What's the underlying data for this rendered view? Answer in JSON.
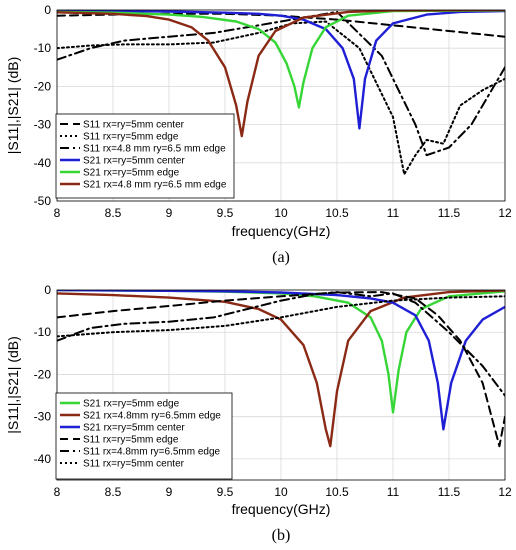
{
  "chart_data": [
    {
      "type": "line",
      "caption": "(a)",
      "xlabel": "frequency(GHz)",
      "ylabel": "|S11|,|S21| (dB)",
      "xlim": [
        8,
        12
      ],
      "ylim": [
        -50,
        0
      ],
      "xticks": [
        "8",
        "8.5",
        "9",
        "9.5",
        "10",
        "10.5",
        "11",
        "11.5",
        "12"
      ],
      "yticks": [
        "0",
        "-10",
        "-20",
        "-30",
        "-40",
        "-50"
      ],
      "grid": true,
      "legend_position": "bottom-left",
      "series": [
        {
          "name": "S11 rx=ry=5mm center",
          "color": "#000000",
          "dash": "dashed",
          "x": [
            8.0,
            8.5,
            9.0,
            9.5,
            10.0,
            10.5,
            11.0,
            11.5,
            12.0
          ],
          "y": [
            -1.5,
            -1.2,
            -1.0,
            -1.0,
            -1.5,
            -2.5,
            -4.0,
            -5.5,
            -7.0
          ]
        },
        {
          "name": "S11 rx=ry=5mm edge",
          "color": "#000000",
          "dash": "dotted",
          "x": [
            8.0,
            8.3,
            8.6,
            9.0,
            9.4,
            9.8,
            10.1,
            10.4,
            10.7,
            11.0,
            11.1,
            11.2,
            11.3,
            11.45,
            11.6,
            11.8,
            12.0
          ],
          "y": [
            -10,
            -9.3,
            -9.0,
            -9.0,
            -8.5,
            -6.0,
            -3.5,
            -3.0,
            -10,
            -28,
            -43,
            -38,
            -34,
            -35,
            -25,
            -21,
            -18
          ]
        },
        {
          "name": "S11 rx=4.8 mm ry=6.5 mm edge",
          "color": "#000000",
          "dash": "dashdot",
          "x": [
            8.0,
            8.3,
            8.6,
            9.0,
            9.4,
            9.8,
            10.2,
            10.5,
            10.9,
            11.2,
            11.3,
            11.5,
            11.7,
            11.9,
            12.0
          ],
          "y": [
            -13,
            -10,
            -8,
            -7,
            -6,
            -4,
            -2,
            -0.5,
            -12,
            -30,
            -38,
            -36,
            -30,
            -20,
            -15
          ]
        },
        {
          "name": "S21 rx=ry=5mm center",
          "color": "#1f1fd6",
          "dash": "solid",
          "x": [
            8.0,
            8.5,
            9.0,
            9.5,
            9.8,
            10.0,
            10.2,
            10.4,
            10.55,
            10.65,
            10.7,
            10.75,
            10.85,
            11.0,
            11.3,
            11.6,
            12.0
          ],
          "y": [
            -0.2,
            -0.3,
            -0.4,
            -0.7,
            -1.0,
            -1.5,
            -2.5,
            -5.0,
            -10.0,
            -18.0,
            -31.0,
            -18.0,
            -8.0,
            -3.5,
            -1.2,
            -0.5,
            -0.3
          ]
        },
        {
          "name": "S21 rx=ry=5mm edge",
          "color": "#37d637",
          "dash": "solid",
          "x": [
            8.0,
            8.5,
            9.0,
            9.3,
            9.6,
            9.8,
            9.95,
            10.05,
            10.12,
            10.16,
            10.2,
            10.28,
            10.4,
            10.6,
            11.0,
            12.0
          ],
          "y": [
            -0.5,
            -0.7,
            -1.2,
            -1.8,
            -3.0,
            -5.0,
            -8.5,
            -14.0,
            -20.0,
            -25.5,
            -19.0,
            -10.0,
            -4.5,
            -1.5,
            -0.3,
            -0.1
          ]
        },
        {
          "name": "S21 rx=4.8 mm ry=6.5 mm edge",
          "color": "#8b2a14",
          "dash": "solid",
          "x": [
            8.0,
            8.5,
            8.8,
            9.0,
            9.2,
            9.35,
            9.5,
            9.6,
            9.65,
            9.7,
            9.8,
            9.95,
            10.2,
            10.6,
            11.0,
            12.0
          ],
          "y": [
            -0.6,
            -1.0,
            -1.6,
            -2.5,
            -4.5,
            -8.0,
            -15.0,
            -25.0,
            -33.0,
            -24.0,
            -12.0,
            -5.5,
            -2.0,
            -0.5,
            -0.1,
            0.0
          ]
        }
      ]
    },
    {
      "type": "line",
      "caption": "(b)",
      "xlabel": "frequency(GHz)",
      "ylabel": "|S11|,|S21| (dB)",
      "xlim": [
        8,
        12
      ],
      "ylim": [
        -45,
        0
      ],
      "xticks": [
        "8",
        "8.5",
        "9",
        "9.5",
        "10",
        "10.5",
        "11",
        "11.5",
        "12"
      ],
      "yticks": [
        "0",
        "-10",
        "-20",
        "-30",
        "-40"
      ],
      "grid": true,
      "legend_position": "bottom-left",
      "series": [
        {
          "name": "S21 rx=ry=5mm edge",
          "color": "#37d637",
          "dash": "solid",
          "x": [
            8.0,
            8.5,
            9.0,
            9.5,
            10.0,
            10.3,
            10.6,
            10.8,
            10.9,
            10.96,
            11.0,
            11.05,
            11.12,
            11.25,
            11.5,
            12.0
          ],
          "y": [
            0.0,
            -0.1,
            -0.2,
            -0.4,
            -0.8,
            -1.5,
            -3.0,
            -6.5,
            -12.0,
            -20.0,
            -29.0,
            -19.0,
            -10.0,
            -4.5,
            -1.5,
            -0.3
          ]
        },
        {
          "name": "S21 rx=4.8mm ry=6.5mm edge",
          "color": "#8b2a14",
          "dash": "solid",
          "x": [
            8.0,
            8.5,
            9.0,
            9.5,
            9.8,
            10.0,
            10.2,
            10.32,
            10.4,
            10.44,
            10.5,
            10.6,
            10.8,
            11.1,
            11.5,
            12.0
          ],
          "y": [
            -0.8,
            -1.2,
            -1.8,
            -2.8,
            -4.5,
            -7.0,
            -13.0,
            -22.0,
            -33.0,
            -37.0,
            -24.0,
            -12.0,
            -5.0,
            -1.8,
            -0.5,
            -0.1
          ]
        },
        {
          "name": "S21 rx=ry=5mm center",
          "color": "#1f1fd6",
          "dash": "solid",
          "x": [
            8.0,
            8.5,
            9.0,
            9.5,
            10.0,
            10.5,
            10.8,
            11.0,
            11.2,
            11.32,
            11.4,
            11.45,
            11.52,
            11.65,
            11.8,
            12.0
          ],
          "y": [
            0.0,
            -0.1,
            -0.2,
            -0.3,
            -0.6,
            -1.2,
            -2.0,
            -3.0,
            -6.0,
            -12.0,
            -22.0,
            -33.0,
            -22.0,
            -12.0,
            -7.0,
            -4.0
          ]
        },
        {
          "name": "S11 rx=ry=5mm edge",
          "color": "#000000",
          "dash": "dashed",
          "x": [
            8.0,
            8.5,
            9.0,
            9.5,
            10.0,
            10.5,
            10.9,
            11.2,
            11.4,
            11.6,
            11.8,
            11.9,
            11.95,
            12.0
          ],
          "y": [
            -6.5,
            -5.0,
            -3.8,
            -2.5,
            -1.5,
            -0.6,
            -0.5,
            -2.0,
            -6.0,
            -12.0,
            -22.0,
            -32.0,
            -37.0,
            -30.0
          ]
        },
        {
          "name": "S11 rx=4.8mm ry=6.5mm edge",
          "color": "#000000",
          "dash": "dashdot",
          "x": [
            8.0,
            8.3,
            8.6,
            9.0,
            9.4,
            9.7,
            10.0,
            10.3,
            10.5,
            10.8,
            11.0,
            11.2,
            11.5,
            11.8,
            12.0
          ],
          "y": [
            -12.0,
            -9.0,
            -8.0,
            -7.5,
            -6.5,
            -4.5,
            -2.5,
            -1.0,
            -0.5,
            -1.5,
            -0.8,
            -3.0,
            -10.0,
            -18.0,
            -25.0
          ]
        },
        {
          "name": "S11 rx=ry=5mm center",
          "color": "#000000",
          "dash": "dotted",
          "x": [
            8.0,
            8.5,
            9.0,
            9.5,
            10.0,
            10.5,
            11.0,
            11.5,
            12.0
          ],
          "y": [
            -11.0,
            -10.0,
            -9.5,
            -8.5,
            -6.5,
            -4.0,
            -2.5,
            -1.8,
            -1.5
          ]
        }
      ]
    }
  ]
}
